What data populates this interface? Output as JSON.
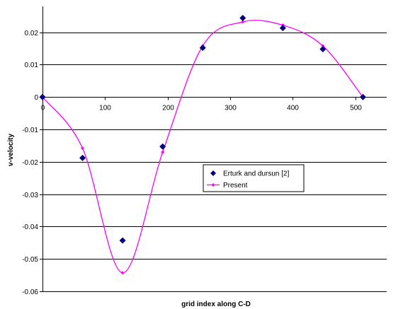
{
  "chart_data": {
    "type": "scatter",
    "title": "",
    "xlabel": "grid index along C-D",
    "ylabel": "v-velocity",
    "xlim": [
      0,
      550
    ],
    "ylim": [
      -0.06,
      0.028
    ],
    "x_ticks": [
      0,
      100,
      200,
      300,
      400,
      500
    ],
    "y_ticks": [
      0.02,
      0.01,
      0,
      -0.01,
      -0.02,
      -0.03,
      -0.04,
      -0.05,
      -0.06
    ],
    "x_tick_labels": [
      "0",
      "100",
      "200",
      "300",
      "400",
      "500"
    ],
    "y_tick_labels": [
      "0.02",
      "0.01",
      "0",
      "-0.01",
      "-0.02",
      "-0.03",
      "-0.04",
      "-0.05",
      "-0.06"
    ],
    "grid": "horizontal",
    "legend_position": "center-right",
    "series": [
      {
        "name": "Erturk and dursun [2]",
        "style": "markers",
        "marker": "diamond",
        "color": "#000080",
        "x": [
          0,
          64,
          128,
          192,
          256,
          320,
          384,
          448,
          512
        ],
        "y": [
          0.0,
          -0.0188,
          -0.0443,
          -0.0153,
          0.0152,
          0.0244,
          0.0213,
          0.0148,
          0.0
        ]
      },
      {
        "name": "Present",
        "style": "smooth-line",
        "marker": "small-diamond",
        "color": "#ff00ff",
        "x": [
          0,
          64,
          128,
          192,
          256,
          320,
          384,
          448,
          512
        ],
        "y": [
          0.0,
          -0.0158,
          -0.0543,
          -0.017,
          0.0158,
          0.0232,
          0.0222,
          0.0158,
          0.0
        ]
      }
    ]
  }
}
